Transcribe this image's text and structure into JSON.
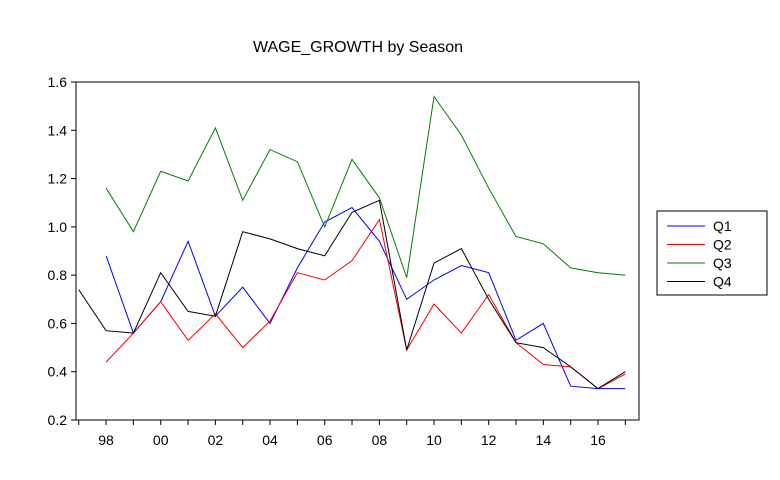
{
  "chart_data": {
    "type": "line",
    "title": "WAGE_GROWTH by Season",
    "xlabel": "",
    "ylabel": "",
    "x": [
      1997,
      1998,
      1999,
      2000,
      2001,
      2002,
      2003,
      2004,
      2005,
      2006,
      2007,
      2008,
      2009,
      2010,
      2011,
      2012,
      2013,
      2014,
      2015,
      2016,
      2017
    ],
    "x_tick_labels": [
      "98",
      "00",
      "02",
      "04",
      "06",
      "08",
      "10",
      "12",
      "14",
      "16"
    ],
    "x_tick_values": [
      1998,
      2000,
      2002,
      2004,
      2006,
      2008,
      2010,
      2012,
      2014,
      2016
    ],
    "xlim": [
      1996.9,
      2017.5
    ],
    "ylim": [
      0.2,
      1.6
    ],
    "y_ticks": [
      0.2,
      0.4,
      0.6,
      0.8,
      1.0,
      1.2,
      1.4,
      1.6
    ],
    "y_tick_labels": [
      "0.2",
      "0.4",
      "0.6",
      "0.8",
      "1.0",
      "1.2",
      "1.4",
      "1.6"
    ],
    "grid": false,
    "legend_position": "right",
    "series": [
      {
        "name": "Q1",
        "color": "#0000ff",
        "values": [
          null,
          0.88,
          0.56,
          0.69,
          0.94,
          0.63,
          0.75,
          0.6,
          0.83,
          1.02,
          1.08,
          0.94,
          0.7,
          0.78,
          0.84,
          0.81,
          0.53,
          0.6,
          0.34,
          0.33,
          0.33
        ]
      },
      {
        "name": "Q2",
        "color": "#ff0000",
        "values": [
          null,
          0.44,
          0.56,
          0.69,
          0.53,
          0.64,
          0.5,
          0.61,
          0.81,
          0.78,
          0.86,
          1.03,
          0.49,
          0.68,
          0.56,
          0.72,
          0.52,
          0.43,
          0.42,
          0.33,
          0.39
        ]
      },
      {
        "name": "Q3",
        "color": "#008000",
        "values": [
          null,
          1.16,
          0.98,
          1.23,
          1.19,
          1.41,
          1.11,
          1.32,
          1.27,
          1.0,
          1.28,
          1.12,
          0.79,
          1.54,
          1.38,
          1.16,
          0.96,
          0.93,
          0.83,
          0.81,
          0.8
        ]
      },
      {
        "name": "Q4",
        "color": "#000000",
        "values": [
          0.74,
          0.57,
          0.56,
          0.81,
          0.65,
          0.63,
          0.98,
          0.95,
          0.91,
          0.88,
          1.06,
          1.11,
          0.49,
          0.85,
          0.91,
          0.7,
          0.52,
          0.5,
          0.42,
          0.33,
          0.4
        ]
      }
    ]
  }
}
